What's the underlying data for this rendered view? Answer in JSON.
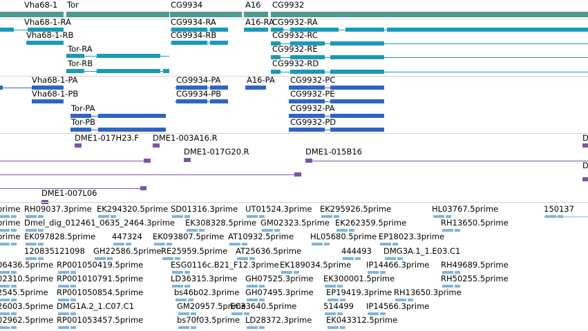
{
  "colors": {
    "locus": "#4f9a8f",
    "transcript": "#1a9ab8",
    "protein": "#2f64c8",
    "clone": "#7a55a8",
    "est": "#7eb5d9",
    "separator": "#d4d4d4"
  },
  "loci": [
    "Vha68-1",
    "Tor",
    "CG9934",
    "A16",
    "CG9932"
  ],
  "transcripts": [
    "Vha68-1-RA",
    "Vha68-1-RB",
    "Tor-RA",
    "Tor-RB",
    "CG9934-RA",
    "CG9934-RB",
    "A16-RA",
    "CG9932-RA",
    "CG9932-RC",
    "CG9932-RE",
    "CG9932-RD"
  ],
  "proteins": [
    "Vha68-1-PA",
    "Vha68-1-PB",
    "Tor-PA",
    "Tor-PB",
    "CG9934-PA",
    "CG9934-PB",
    "A16-PA",
    "CG9932-PC",
    "CG9932-PE",
    "CG9932-PA",
    "CG9932-PD"
  ],
  "clones": [
    "DME1-017H23.F",
    "DME1-003A16.R",
    "DME1-017G20.R",
    "DME1-015B16",
    "DME1-007L06",
    "D",
    "D"
  ],
  "ests": [
    "RH09037.3prime",
    "EK294320.5prime",
    "SD01316.3prime",
    "UT01524.3prime",
    "EK295926.5prime",
    "HL03767.5prime",
    "150137",
    "Dmel_dig_012461_0635_2464.3prime",
    "EK308328.5prime",
    "GM02323.5prime",
    "EK262359.5prime",
    "RH13650.5prime",
    "EK097828.5prime",
    "447324",
    "EK093807.5prime",
    "AT10932.5prime",
    "HL05680.5prime",
    "EP18023.3prime",
    "120835121098",
    "GH22586.5prime",
    "RE25959.5prime",
    "AT25636.5prime",
    "444493",
    "DMG3A.1_1.E03.C1",
    "RP001050419.5prime",
    "ESG0116c.B21_F12.3prime",
    "EK189034.5prime",
    "IP14466.3prime",
    "RH49689.5prime",
    "RP001010791.5prime",
    "LD36315.3prime",
    "GH07525.3prime",
    "EK300001.5prime",
    "RH50255.5prime",
    "RP001050854.5prime",
    "bs46b02.3prime",
    "GH07495.3prime",
    "EP19419.3prime",
    "RH13650.3prime",
    "DMG1A.2_1.C07.C1",
    "GM20957.5prime",
    "EC33640.5prime",
    "514499",
    "IP14566.3prime",
    "RP001053457.5prime",
    "bs70f03.5prime",
    "LD28372.3prime",
    "EK043312.5prime",
    "prime",
    "prime",
    "prime",
    "06436.5prime",
    "02310.5prime",
    "2545.5prime",
    "26003.5prime",
    "02962.5prime"
  ]
}
